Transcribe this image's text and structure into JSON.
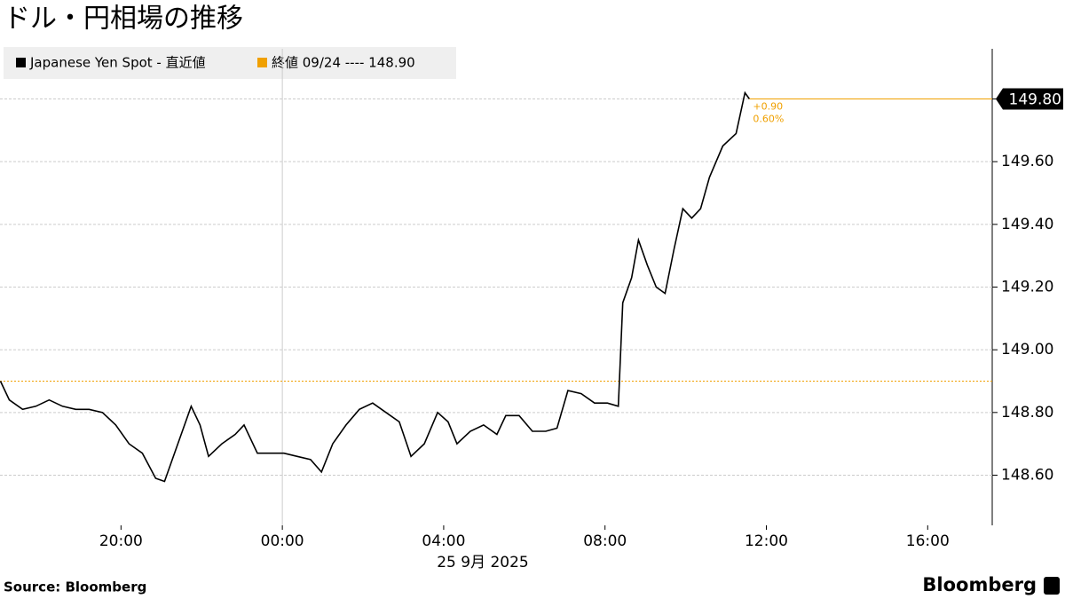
{
  "chart_data": {
    "type": "line",
    "title": "ドル・円相場の推移",
    "x_label": "25 9月  2025",
    "source": "Source:  Bloomberg",
    "brand": "Bloomberg",
    "x": [
      -6.99,
      -6.77,
      -6.44,
      -6.11,
      -5.78,
      -5.45,
      -5.12,
      -4.79,
      -4.46,
      -4.13,
      -3.8,
      -3.47,
      -3.14,
      -2.92,
      -2.59,
      -2.26,
      -2.04,
      -1.83,
      -1.5,
      -1.17,
      -0.95,
      -0.62,
      -0.29,
      0.04,
      0.37,
      0.7,
      0.97,
      1.25,
      1.58,
      1.91,
      2.24,
      2.57,
      2.9,
      3.19,
      3.52,
      3.85,
      4.11,
      4.33,
      4.66,
      4.99,
      5.32,
      5.54,
      5.87,
      6.2,
      6.53,
      6.81,
      7.08,
      7.41,
      7.74,
      8.06,
      8.33,
      8.44,
      8.66,
      8.83,
      9.05,
      9.27,
      9.49,
      9.71,
      9.93,
      10.15,
      10.37,
      10.59,
      10.92,
      11.25,
      11.47,
      11.58
    ],
    "series": [
      {
        "name": "Japanese Yen Spot - 直近値",
        "color": "#000000",
        "values": [
          148.9,
          148.84,
          148.81,
          148.82,
          148.84,
          148.82,
          148.81,
          148.81,
          148.8,
          148.76,
          148.7,
          148.67,
          148.59,
          148.58,
          148.7,
          148.82,
          148.76,
          148.66,
          148.7,
          148.73,
          148.76,
          148.67,
          148.67,
          148.67,
          148.66,
          148.65,
          148.61,
          148.7,
          148.76,
          148.81,
          148.83,
          148.8,
          148.77,
          148.66,
          148.7,
          148.8,
          148.77,
          148.7,
          148.74,
          148.76,
          148.73,
          148.79,
          148.79,
          148.74,
          148.74,
          148.75,
          148.87,
          148.86,
          148.83,
          148.83,
          148.82,
          149.15,
          149.23,
          149.35,
          149.27,
          149.2,
          149.18,
          149.32,
          149.45,
          149.42,
          149.45,
          149.55,
          149.65,
          149.69,
          149.82,
          149.8
        ]
      }
    ],
    "reference_line": {
      "name": "終値 09/24 ---- 148.90",
      "value": 148.9,
      "color": "#f0a000"
    },
    "last_price": {
      "value": 149.8,
      "label": "149.80"
    },
    "annotations": [
      "+0.90",
      "0.60%"
    ],
    "xlim": [
      -7,
      17.6
    ],
    "xticks": [
      {
        "value": -4,
        "label": "20:00"
      },
      {
        "value": 0,
        "label": "00:00"
      },
      {
        "value": 4,
        "label": "04:00"
      },
      {
        "value": 8,
        "label": "08:00"
      },
      {
        "value": 12,
        "label": "12:00"
      },
      {
        "value": 16,
        "label": "16:00"
      }
    ],
    "ylim": [
      148.44,
      149.96
    ],
    "yticks": [
      {
        "value": 148.6,
        "label": "148.60"
      },
      {
        "value": 148.8,
        "label": "148.80"
      },
      {
        "value": 149,
        "label": "149.00"
      },
      {
        "value": 149.2,
        "label": "149.20"
      },
      {
        "value": 149.4,
        "label": "149.40"
      },
      {
        "value": 149.6,
        "label": "149.60"
      },
      {
        "value": 149.8,
        "label": "149.80"
      }
    ],
    "grid": true
  }
}
